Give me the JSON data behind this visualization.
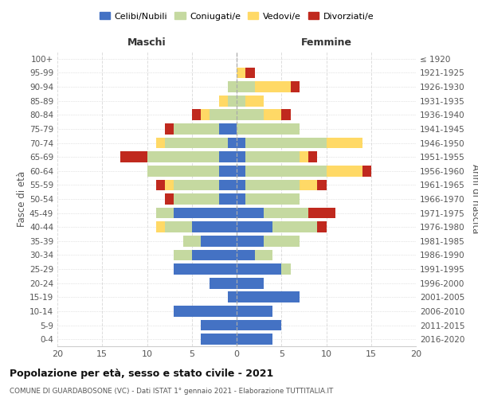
{
  "age_groups": [
    "0-4",
    "5-9",
    "10-14",
    "15-19",
    "20-24",
    "25-29",
    "30-34",
    "35-39",
    "40-44",
    "45-49",
    "50-54",
    "55-59",
    "60-64",
    "65-69",
    "70-74",
    "75-79",
    "80-84",
    "85-89",
    "90-94",
    "95-99",
    "100+"
  ],
  "birth_years": [
    "2016-2020",
    "2011-2015",
    "2006-2010",
    "2001-2005",
    "1996-2000",
    "1991-1995",
    "1986-1990",
    "1981-1985",
    "1976-1980",
    "1971-1975",
    "1966-1970",
    "1961-1965",
    "1956-1960",
    "1951-1955",
    "1946-1950",
    "1941-1945",
    "1936-1940",
    "1931-1935",
    "1926-1930",
    "1921-1925",
    "≤ 1920"
  ],
  "maschi": {
    "celibi": [
      4,
      4,
      7,
      1,
      3,
      7,
      5,
      4,
      5,
      7,
      2,
      2,
      2,
      2,
      1,
      2,
      0,
      0,
      0,
      0,
      0
    ],
    "coniugati": [
      0,
      0,
      0,
      0,
      0,
      0,
      2,
      2,
      3,
      2,
      5,
      5,
      8,
      8,
      7,
      5,
      3,
      1,
      1,
      0,
      0
    ],
    "vedovi": [
      0,
      0,
      0,
      0,
      0,
      0,
      0,
      0,
      1,
      0,
      0,
      1,
      0,
      0,
      1,
      0,
      1,
      1,
      0,
      0,
      0
    ],
    "divorziati": [
      0,
      0,
      0,
      0,
      0,
      0,
      0,
      0,
      0,
      0,
      1,
      1,
      0,
      3,
      0,
      1,
      1,
      0,
      0,
      0,
      0
    ]
  },
  "femmine": {
    "nubili": [
      4,
      5,
      4,
      7,
      3,
      5,
      2,
      3,
      4,
      3,
      1,
      1,
      1,
      1,
      1,
      0,
      0,
      0,
      0,
      0,
      0
    ],
    "coniugate": [
      0,
      0,
      0,
      0,
      0,
      1,
      2,
      4,
      5,
      5,
      6,
      6,
      9,
      6,
      9,
      7,
      3,
      1,
      2,
      0,
      0
    ],
    "vedove": [
      0,
      0,
      0,
      0,
      0,
      0,
      0,
      0,
      0,
      0,
      0,
      2,
      4,
      1,
      4,
      0,
      2,
      2,
      4,
      1,
      0
    ],
    "divorziate": [
      0,
      0,
      0,
      0,
      0,
      0,
      0,
      0,
      1,
      3,
      0,
      1,
      1,
      1,
      0,
      0,
      1,
      0,
      1,
      1,
      0
    ]
  },
  "colors": {
    "celibi": "#4472c4",
    "coniugati": "#c5d9a0",
    "vedovi": "#ffd966",
    "divorziati": "#c0291e"
  },
  "title": "Popolazione per età, sesso e stato civile - 2021",
  "subtitle": "COMUNE DI GUARDABOSONE (VC) - Dati ISTAT 1° gennaio 2021 - Elaborazione TUTTITALIA.IT",
  "xlabel_left": "Maschi",
  "xlabel_right": "Femmine",
  "ylabel_left": "Fasce di età",
  "ylabel_right": "Anni di nascita",
  "xlim": 20,
  "legend_labels": [
    "Celibi/Nubili",
    "Coniugati/e",
    "Vedovi/e",
    "Divorziati/e"
  ]
}
